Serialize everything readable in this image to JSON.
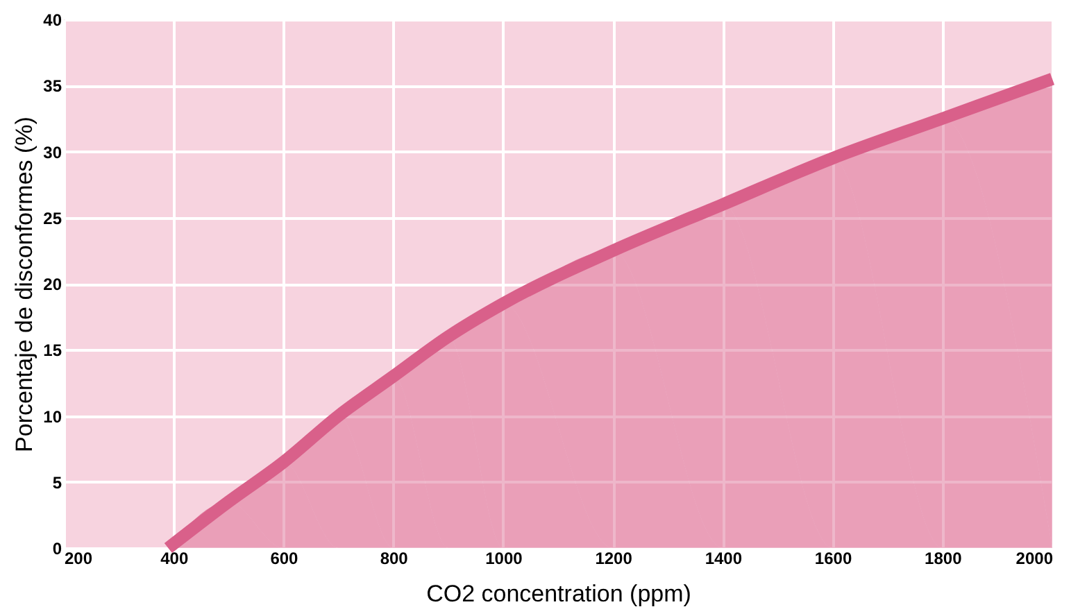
{
  "chart_data": {
    "type": "area",
    "xlabel": "CO2 concentration (ppm)",
    "ylabel": "Porcentaje de disconformes (%)",
    "x": [
      390,
      500,
      600,
      700,
      800,
      900,
      1000,
      1200,
      1400,
      1600,
      1800,
      2000
    ],
    "series": [
      {
        "color": "#d9608a",
        "values": [
          0,
          3.5,
          6.5,
          10,
          13,
          16,
          18.5,
          22.5,
          26,
          29.5,
          32.5,
          35.5
        ]
      }
    ],
    "xlim": [
      200,
      2000
    ],
    "xticks": [
      200,
      400,
      600,
      800,
      1000,
      1200,
      1400,
      1600,
      1800,
      2000
    ],
    "ylim": [
      0,
      40
    ],
    "yticks": [
      0,
      5,
      10,
      15,
      20,
      25,
      30,
      35,
      40
    ],
    "grid": true
  }
}
